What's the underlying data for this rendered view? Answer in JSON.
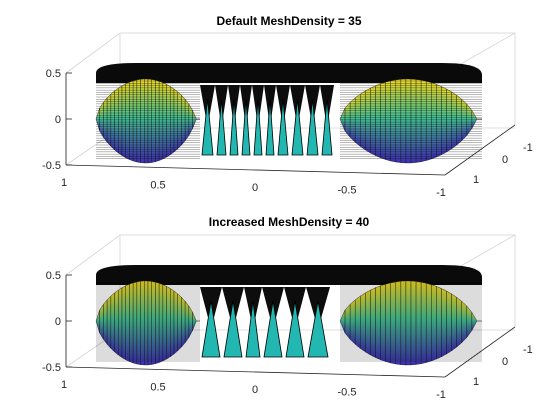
{
  "chart_data": [
    {
      "type": "surface",
      "title": "Default MeshDensity = 35",
      "mesh_density": 35,
      "z_ticks": [
        "0.5",
        "0",
        "-0.5"
      ],
      "x_ticks": [
        "1",
        "0.5",
        "0",
        "-0.5",
        "-1"
      ],
      "y_ticks": [
        "-1",
        "0",
        "1"
      ],
      "xlim": [
        -1,
        1
      ],
      "ylim": [
        -1,
        1
      ],
      "zlim": [
        -0.5,
        0.5
      ],
      "grid": true,
      "colormap": [
        "#3e26a8",
        "#2f6be8",
        "#19a3d3",
        "#26c0a3",
        "#8ac768",
        "#d6b93c",
        "#f9e61a"
      ]
    },
    {
      "type": "surface",
      "title": "Increased MeshDensity = 40",
      "mesh_density": 40,
      "z_ticks": [
        "0.5",
        "0",
        "-0.5"
      ],
      "x_ticks": [
        "1",
        "0.5",
        "0",
        "-0.5",
        "-1"
      ],
      "y_ticks": [
        "-1",
        "0",
        "1"
      ],
      "xlim": [
        -1,
        1
      ],
      "ylim": [
        -1,
        1
      ],
      "zlim": [
        -0.5,
        0.5
      ],
      "grid": true,
      "colormap": [
        "#3e26a8",
        "#2f6be8",
        "#19a3d3",
        "#26c0a3",
        "#8ac768",
        "#d6b93c",
        "#f9e61a"
      ]
    }
  ]
}
